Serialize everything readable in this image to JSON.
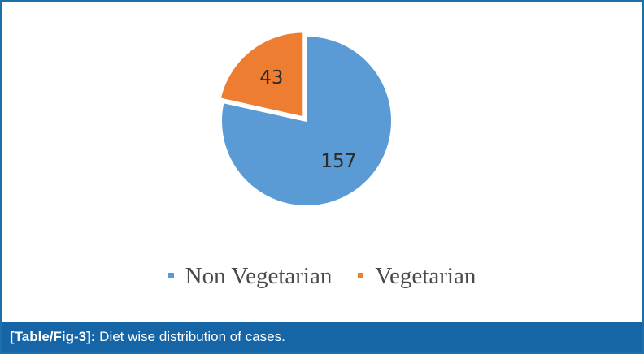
{
  "chart_data": {
    "type": "pie",
    "categories": [
      "Non Vegetarian",
      "Vegetarian"
    ],
    "values": [
      157,
      43
    ],
    "colors": [
      "#5b9bd5",
      "#ed7d31"
    ],
    "data_labels": [
      "157",
      "43"
    ],
    "exploded_slice": "Vegetarian",
    "legend_placement": "bottom",
    "title": "",
    "xlabel": "",
    "ylabel": ""
  },
  "caption": {
    "label": "[Table/Fig-3]:",
    "text": " Diet wise distribution of cases."
  }
}
